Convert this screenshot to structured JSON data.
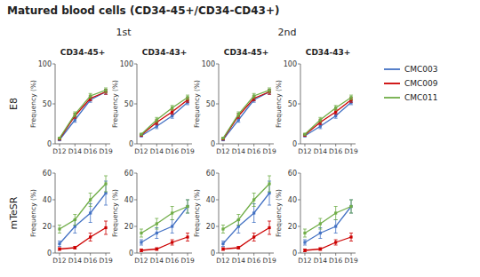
{
  "chart_data": [
    {
      "type": "line",
      "title": "Matured blood cells (CD34-45+/CD34-CD43+)",
      "subtitle": "CD34-45+",
      "annotations": [
        "1st",
        "E8"
      ],
      "legend": "upper right",
      "grid": false,
      "y_label": "Frequency (%)",
      "categories": [
        "D12",
        "D14",
        "D16",
        "D19"
      ],
      "ylim": [
        0,
        100
      ],
      "yticks": [
        0,
        50,
        100
      ],
      "series": [
        {
          "name": "CMC003",
          "color": "#4472c4",
          "values": [
            5,
            30,
            55,
            65
          ],
          "errors": [
            1,
            3,
            3,
            3
          ]
        },
        {
          "name": "CMC009",
          "color": "#cc0000",
          "values": [
            6,
            35,
            57,
            65
          ],
          "errors": [
            1,
            3,
            3,
            3
          ]
        },
        {
          "name": "CMC011",
          "color": "#70ad47",
          "values": [
            7,
            37,
            60,
            67
          ],
          "errors": [
            1,
            3,
            3,
            3
          ]
        }
      ]
    },
    {
      "type": "line",
      "subtitle": "CD34-43+",
      "grid": false,
      "y_label": "Frequency (%)",
      "categories": [
        "D12",
        "D14",
        "D16",
        "D19"
      ],
      "ylim": [
        0,
        100
      ],
      "yticks": [
        0,
        50,
        100
      ],
      "series": [
        {
          "color": "#4472c4",
          "values": [
            10,
            22,
            35,
            52
          ],
          "errors": [
            1,
            3,
            3,
            3
          ]
        },
        {
          "color": "#cc0000",
          "values": [
            11,
            27,
            40,
            55
          ],
          "errors": [
            1,
            3,
            3,
            3
          ]
        },
        {
          "color": "#70ad47",
          "values": [
            12,
            30,
            45,
            58
          ],
          "errors": [
            1,
            3,
            3,
            3
          ]
        }
      ]
    },
    {
      "type": "line",
      "subtitle": "CD34-45+",
      "annotations": [
        "2nd"
      ],
      "grid": false,
      "y_label": "Frequency (%)",
      "categories": [
        "D12",
        "D14",
        "D16",
        "D19"
      ],
      "ylim": [
        0,
        100
      ],
      "yticks": [
        0,
        50,
        100
      ],
      "series": [
        {
          "color": "#4472c4",
          "values": [
            5,
            30,
            55,
            65
          ],
          "errors": [
            1,
            3,
            3,
            3
          ]
        },
        {
          "color": "#cc0000",
          "values": [
            6,
            35,
            57,
            65
          ],
          "errors": [
            1,
            3,
            3,
            3
          ]
        },
        {
          "color": "#70ad47",
          "values": [
            7,
            37,
            60,
            67
          ],
          "errors": [
            1,
            3,
            3,
            3
          ]
        }
      ]
    },
    {
      "type": "line",
      "subtitle": "CD34-43+",
      "grid": false,
      "y_label": "Frequency (%)",
      "categories": [
        "D12",
        "D14",
        "D16",
        "D19"
      ],
      "ylim": [
        0,
        100
      ],
      "yticks": [
        0,
        50,
        100
      ],
      "series": [
        {
          "color": "#4472c4",
          "values": [
            10,
            22,
            35,
            52
          ],
          "errors": [
            1,
            3,
            3,
            3
          ]
        },
        {
          "color": "#cc0000",
          "values": [
            11,
            27,
            40,
            55
          ],
          "errors": [
            1,
            3,
            3,
            3
          ]
        },
        {
          "color": "#70ad47",
          "values": [
            12,
            30,
            45,
            58
          ],
          "errors": [
            1,
            3,
            3,
            3
          ]
        }
      ]
    },
    {
      "type": "line",
      "annotations": [
        "mTeSR"
      ],
      "grid": false,
      "y_label": "Frequency (%)",
      "categories": [
        "D12",
        "D14",
        "D16",
        "D19"
      ],
      "ylim": [
        0,
        60
      ],
      "yticks": [
        0,
        20,
        40,
        60
      ],
      "series": [
        {
          "color": "#4472c4",
          "values": [
            7,
            20,
            30,
            45
          ],
          "errors": [
            2,
            5,
            7,
            9
          ]
        },
        {
          "color": "#cc0000",
          "values": [
            3,
            4,
            12,
            19
          ],
          "errors": [
            1,
            1,
            3,
            5
          ]
        },
        {
          "color": "#70ad47",
          "values": [
            18,
            25,
            40,
            52
          ],
          "errors": [
            3,
            4,
            5,
            6
          ]
        }
      ]
    },
    {
      "type": "line",
      "grid": false,
      "y_label": "Frequency (%)",
      "categories": [
        "D12",
        "D14",
        "D16",
        "D19"
      ],
      "ylim": [
        0,
        60
      ],
      "yticks": [
        0,
        20,
        40,
        60
      ],
      "series": [
        {
          "color": "#4472c4",
          "values": [
            8,
            15,
            20,
            35
          ],
          "errors": [
            2,
            4,
            5,
            5
          ]
        },
        {
          "color": "#cc0000",
          "values": [
            2,
            3,
            8,
            12
          ],
          "errors": [
            1,
            1,
            2,
            3
          ]
        },
        {
          "color": "#70ad47",
          "values": [
            15,
            22,
            30,
            35
          ],
          "errors": [
            3,
            4,
            5,
            5
          ]
        }
      ]
    },
    {
      "type": "line",
      "grid": false,
      "y_label": "Frequency (%)",
      "categories": [
        "D12",
        "D14",
        "D16",
        "D19"
      ],
      "ylim": [
        0,
        60
      ],
      "yticks": [
        0,
        20,
        40,
        60
      ],
      "series": [
        {
          "color": "#4472c4",
          "values": [
            7,
            20,
            30,
            45
          ],
          "errors": [
            2,
            5,
            7,
            9
          ]
        },
        {
          "color": "#cc0000",
          "values": [
            3,
            4,
            12,
            19
          ],
          "errors": [
            1,
            1,
            3,
            5
          ]
        },
        {
          "color": "#70ad47",
          "values": [
            18,
            25,
            40,
            52
          ],
          "errors": [
            3,
            4,
            5,
            6
          ]
        }
      ]
    },
    {
      "type": "line",
      "grid": false,
      "y_label": "Frequency (%)",
      "categories": [
        "D12",
        "D14",
        "D16",
        "D19"
      ],
      "ylim": [
        0,
        60
      ],
      "yticks": [
        0,
        20,
        40,
        60
      ],
      "series": [
        {
          "color": "#4472c4",
          "values": [
            8,
            15,
            20,
            35
          ],
          "errors": [
            2,
            4,
            5,
            5
          ]
        },
        {
          "color": "#cc0000",
          "values": [
            2,
            3,
            8,
            12
          ],
          "errors": [
            1,
            1,
            2,
            3
          ]
        },
        {
          "color": "#70ad47",
          "values": [
            15,
            22,
            30,
            35
          ],
          "errors": [
            3,
            4,
            5,
            5
          ]
        }
      ]
    }
  ]
}
